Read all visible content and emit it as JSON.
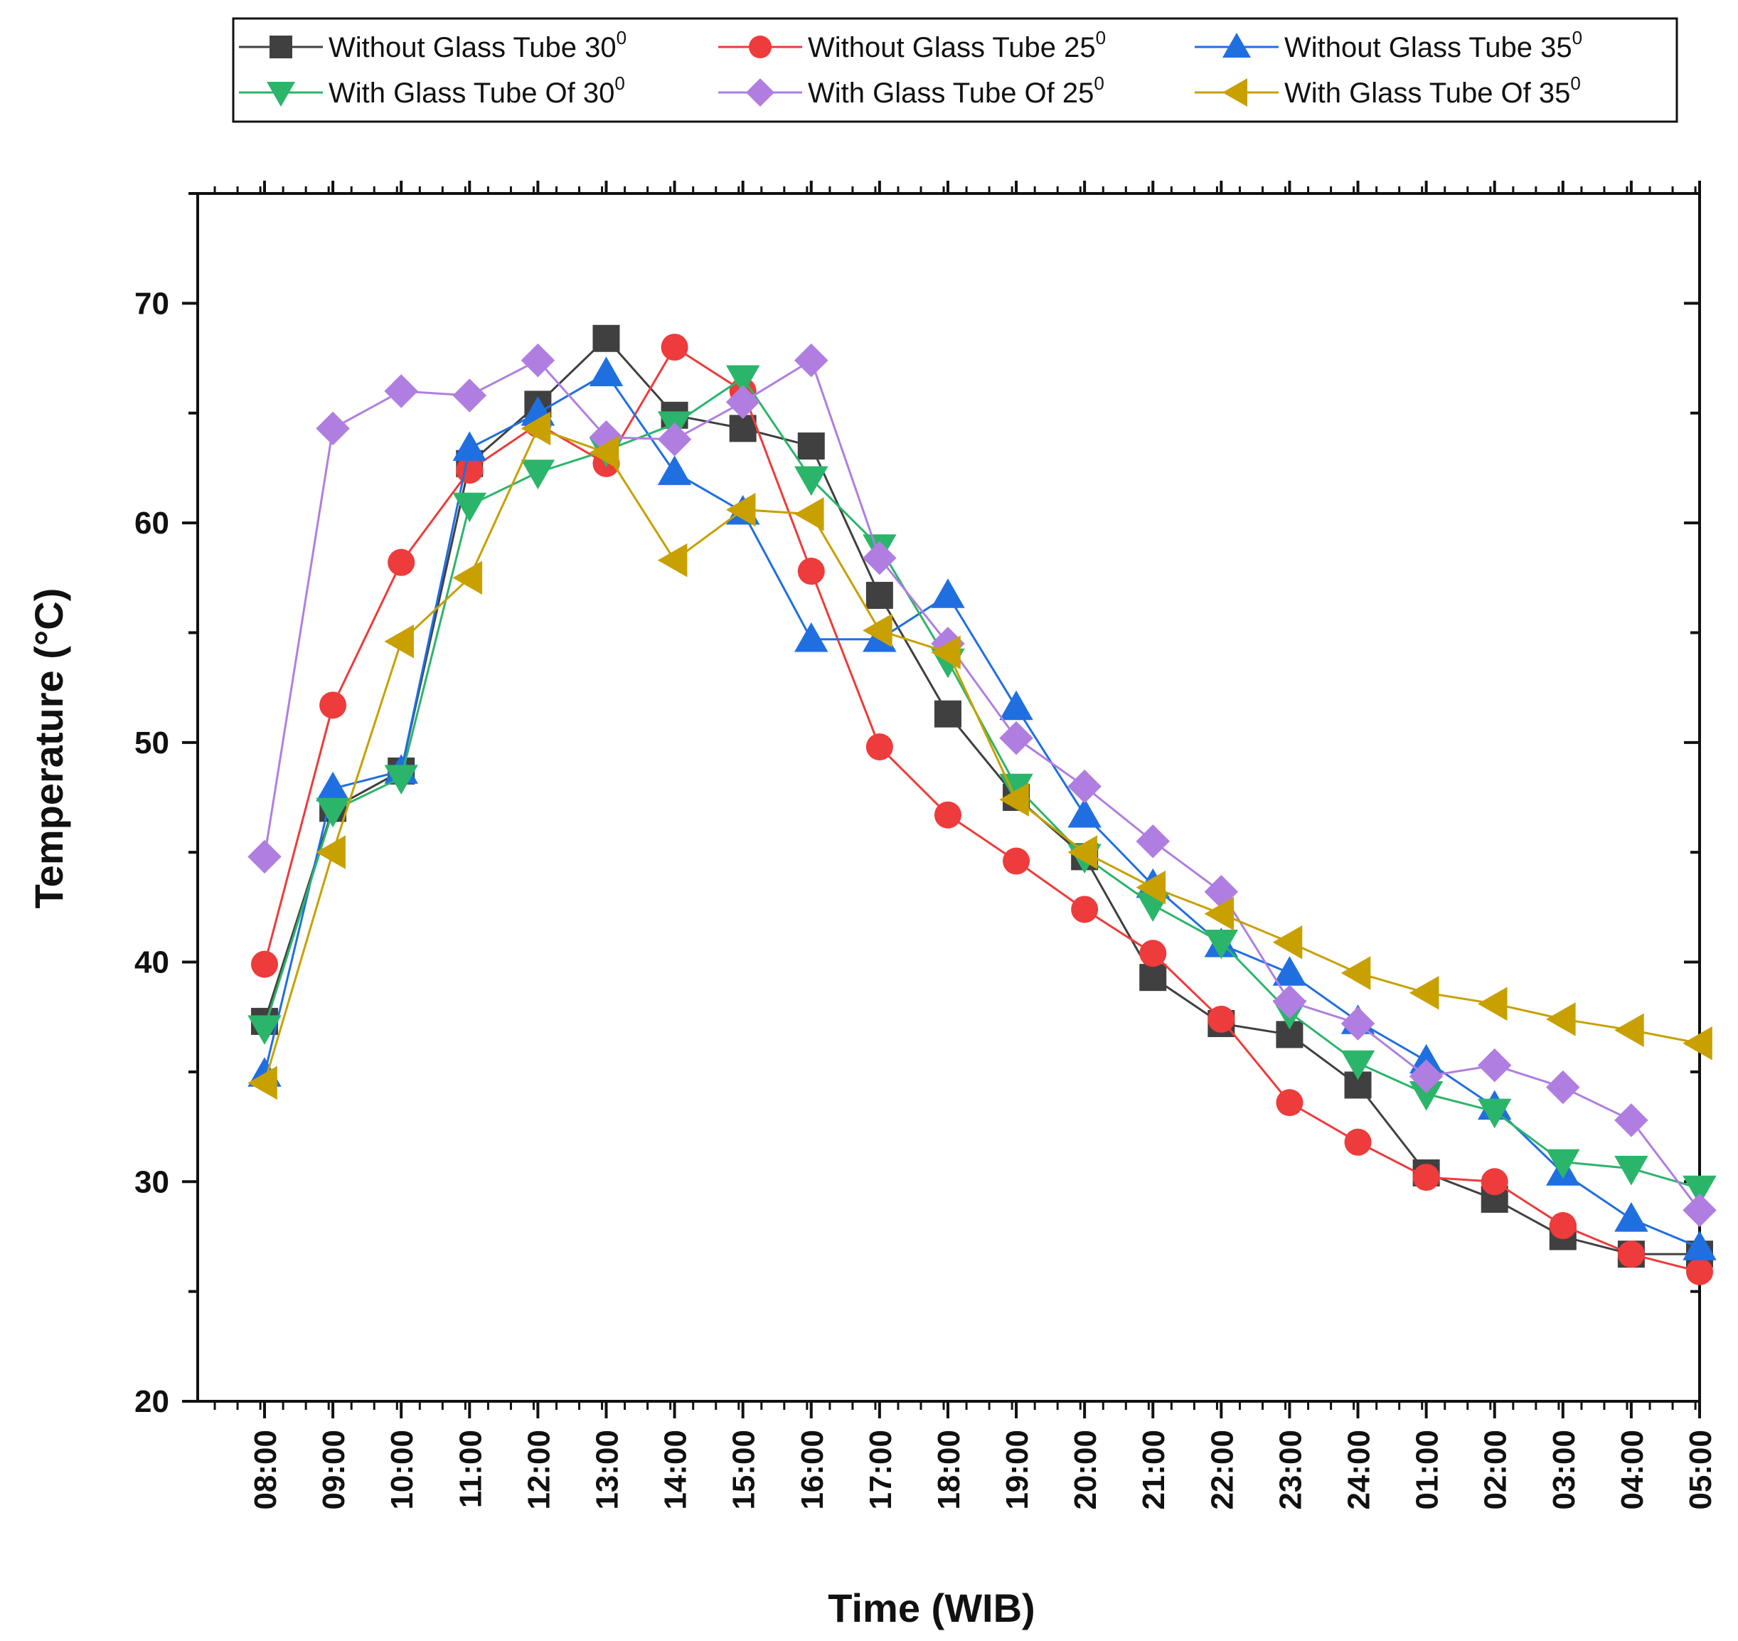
{
  "chart_data": {
    "type": "line",
    "title": "",
    "xlabel": "Time (WIB)",
    "ylabel": "Temperature (°C)",
    "ylim": [
      20,
      75
    ],
    "yticks": [
      20,
      30,
      40,
      50,
      60,
      70
    ],
    "legend_position": "top",
    "categories": [
      "08:00",
      "09:00",
      "10:00",
      "11:00",
      "12:00",
      "13:00",
      "14:00",
      "15:00",
      "16:00",
      "17:00",
      "18:00",
      "19:00",
      "20:00",
      "21:00",
      "22:00",
      "23:00",
      "24:00",
      "01:00",
      "02:00",
      "03:00",
      "04:00",
      "05:00"
    ],
    "series": [
      {
        "name": "Without Glass Tube 30",
        "superscript": "0",
        "color": "#404040",
        "marker": "square",
        "values": [
          37.3,
          47.0,
          48.7,
          62.7,
          65.4,
          68.4,
          64.9,
          64.3,
          63.5,
          56.7,
          51.3,
          47.5,
          44.8,
          39.3,
          37.2,
          36.7,
          34.4,
          30.4,
          29.2,
          27.5,
          26.7,
          26.7
        ]
      },
      {
        "name": "Without Glass Tube 25",
        "superscript": "0",
        "color": "#ee3b3b",
        "marker": "circle",
        "values": [
          39.9,
          51.7,
          58.2,
          62.4,
          64.5,
          62.7,
          68.0,
          66.0,
          57.8,
          49.8,
          46.7,
          44.6,
          42.4,
          40.4,
          37.4,
          33.6,
          31.8,
          30.2,
          30.0,
          28.0,
          26.7,
          25.9
        ]
      },
      {
        "name": "Without Glass Tube 35",
        "superscript": "0",
        "color": "#1f6fe0",
        "marker": "triangle-up",
        "values": [
          34.9,
          47.9,
          48.7,
          63.4,
          65.0,
          66.8,
          62.3,
          60.5,
          54.7,
          54.7,
          56.7,
          51.6,
          46.7,
          43.5,
          40.8,
          39.5,
          37.3,
          35.5,
          33.4,
          30.4,
          28.3,
          27.0
        ]
      },
      {
        "name": "With Glass Tube Of 30",
        "superscript": "0",
        "color": "#2bb56a",
        "marker": "triangle-down",
        "values": [
          37.0,
          46.9,
          48.4,
          60.8,
          62.3,
          63.3,
          64.5,
          66.6,
          62.0,
          58.9,
          53.7,
          48.0,
          44.8,
          42.6,
          40.9,
          37.7,
          35.4,
          34.0,
          33.2,
          30.9,
          30.6,
          29.7
        ]
      },
      {
        "name": "With Glass Tube Of 25",
        "superscript": "0",
        "color": "#b07ee0",
        "marker": "diamond",
        "values": [
          44.8,
          64.3,
          66.0,
          65.8,
          67.4,
          63.9,
          63.8,
          65.5,
          67.4,
          58.4,
          54.5,
          50.2,
          48.0,
          45.5,
          43.2,
          38.2,
          37.2,
          34.8,
          35.3,
          34.3,
          32.8,
          28.7
        ]
      },
      {
        "name": "With Glass Tube Of 35",
        "superscript": "0",
        "color": "#c8a000",
        "marker": "triangle-left",
        "values": [
          34.5,
          45.0,
          54.6,
          57.5,
          64.3,
          63.2,
          58.3,
          60.6,
          60.4,
          55.1,
          54.1,
          47.4,
          45.0,
          43.4,
          42.2,
          40.9,
          39.5,
          38.6,
          38.1,
          37.4,
          36.9,
          36.3
        ]
      }
    ]
  }
}
